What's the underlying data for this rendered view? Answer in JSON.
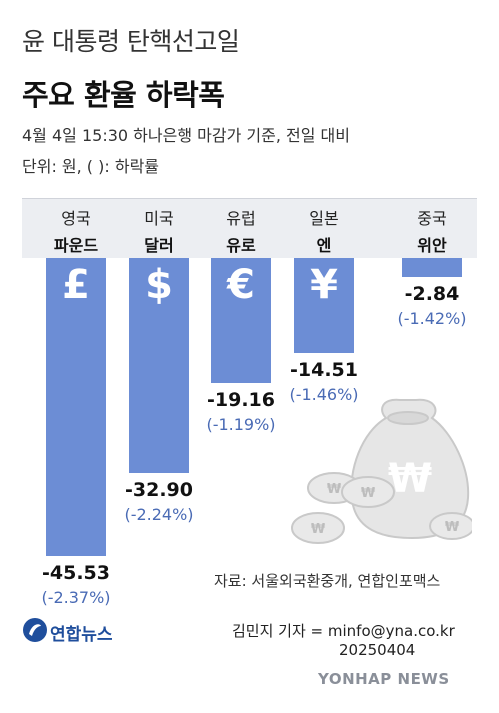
{
  "header": {
    "supertitle": "윤 대통령 탄핵선고일",
    "title": "주요 환율 하락폭",
    "subtitle": "4월 4일 15:30 하나은행 마감가 기준, 전일 대비",
    "unit": "단위: 원, ( ): 하락률"
  },
  "chart_data": {
    "type": "bar",
    "categories": [
      {
        "line1": "영국",
        "line2": "파운드",
        "symbol": "£"
      },
      {
        "line1": "미국",
        "line2": "달러",
        "symbol": "$"
      },
      {
        "line1": "유럽",
        "line2": "유로",
        "symbol": "€"
      },
      {
        "line1": "일본",
        "line2": "엔",
        "symbol": "¥"
      },
      {
        "line1": "중국",
        "line2": "위안",
        "symbol": ""
      }
    ],
    "values": [
      -45.53,
      -32.9,
      -19.16,
      -14.51,
      -2.84
    ],
    "value_labels": [
      "-45.53",
      "-32.90",
      "-19.16",
      "-14.51",
      "-2.84"
    ],
    "pct_labels": [
      "(-2.37%)",
      "(-2.24%)",
      "(-1.19%)",
      "(-1.46%)",
      "(-1.42%)"
    ],
    "bar_color": "#6c8dd5",
    "pct_color": "#4a6bb5"
  },
  "footer": {
    "source": "자료: 서울외국환중개, 연합인포맥스",
    "reporter": "김민지 기자 = minfo@yna.co.kr",
    "date": "20250404",
    "logo": "연합뉴스",
    "watermark": "YONHAP NEWS"
  }
}
